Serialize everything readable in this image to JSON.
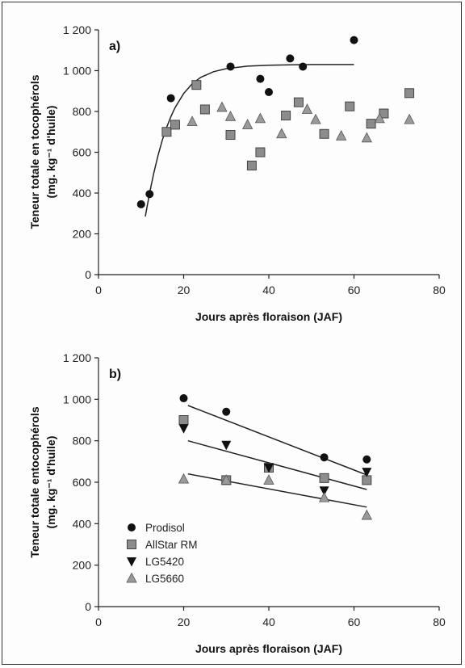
{
  "chart_data": [
    {
      "type": "scatter",
      "panel_label": "a)",
      "xlabel": "Jours après floraison (JAF)",
      "ylabel_line1": "Teneur totale en tocophérols",
      "ylabel_line2": "(mg. kg⁻¹ d'huile)",
      "xlim": [
        0,
        80
      ],
      "ylim": [
        0,
        1200
      ],
      "xticks": [
        0,
        20,
        40,
        60,
        80
      ],
      "yticks": [
        0,
        200,
        400,
        600,
        800,
        1000,
        1200
      ],
      "ytick_labels": [
        "0",
        "200",
        "400",
        "600",
        "800",
        "1 000",
        "1 200"
      ],
      "series": [
        {
          "marker": "circle",
          "x": [
            10,
            12,
            17,
            31,
            38,
            40,
            45,
            48,
            60
          ],
          "y": [
            345,
            395,
            865,
            1020,
            960,
            895,
            1060,
            1020,
            1150
          ]
        },
        {
          "marker": "square",
          "x": [
            16,
            18,
            23,
            25,
            31,
            36,
            38,
            44,
            47,
            53,
            59,
            64,
            67,
            73
          ],
          "y": [
            700,
            735,
            930,
            810,
            685,
            535,
            600,
            780,
            845,
            690,
            825,
            740,
            790,
            890
          ]
        },
        {
          "marker": "triangle-up",
          "x": [
            22,
            29,
            31,
            35,
            38,
            43,
            49,
            51,
            57,
            63,
            66,
            73
          ],
          "y": [
            750,
            820,
            775,
            735,
            765,
            690,
            810,
            760,
            680,
            670,
            765,
            760
          ]
        }
      ],
      "fit_curves": [
        {
          "x": [
            11,
            12,
            13,
            14,
            15,
            16,
            17,
            18,
            20,
            22,
            24,
            27,
            30,
            35,
            40,
            45,
            50,
            55,
            60
          ],
          "y": [
            285,
            400,
            500,
            585,
            660,
            722,
            775,
            819,
            888,
            936,
            967,
            995,
            1010,
            1022,
            1027,
            1029,
            1030,
            1030,
            1030
          ]
        }
      ]
    },
    {
      "type": "scatter",
      "panel_label": "b)",
      "xlabel": "Jours après floraison (JAF)",
      "ylabel_line1": "Teneur totale entocophérols",
      "ylabel_line2": "(mg. kg⁻¹ d'huile)",
      "xlim": [
        0,
        80
      ],
      "ylim": [
        0,
        1200
      ],
      "xticks": [
        0,
        20,
        40,
        60,
        80
      ],
      "yticks": [
        0,
        200,
        400,
        600,
        800,
        1000,
        1200
      ],
      "ytick_labels": [
        "0",
        "200",
        "400",
        "600",
        "800",
        "1 000",
        "1 200"
      ],
      "legend_position": "bottom-left",
      "series": [
        {
          "name": "Prodisol",
          "marker": "circle",
          "x": [
            20,
            30,
            40,
            53,
            63
          ],
          "y": [
            1005,
            940,
            670,
            720,
            710
          ]
        },
        {
          "name": "AllStar RM",
          "marker": "square",
          "x": [
            20,
            30,
            40,
            53,
            63
          ],
          "y": [
            900,
            610,
            670,
            620,
            610
          ]
        },
        {
          "name": "LG5420",
          "marker": "triangle-down",
          "x": [
            20,
            30,
            40,
            53,
            63
          ],
          "y": [
            860,
            780,
            670,
            560,
            650
          ]
        },
        {
          "name": "LG5660",
          "marker": "triangle-up",
          "x": [
            20,
            30,
            40,
            53,
            63
          ],
          "y": [
            615,
            610,
            610,
            525,
            440
          ]
        }
      ],
      "fit_lines": [
        {
          "x": [
            21,
            63
          ],
          "y": [
            970,
            635
          ]
        },
        {
          "x": [
            21,
            63
          ],
          "y": [
            800,
            565
          ]
        },
        {
          "x": [
            21,
            63
          ],
          "y": [
            640,
            480
          ]
        }
      ]
    }
  ]
}
